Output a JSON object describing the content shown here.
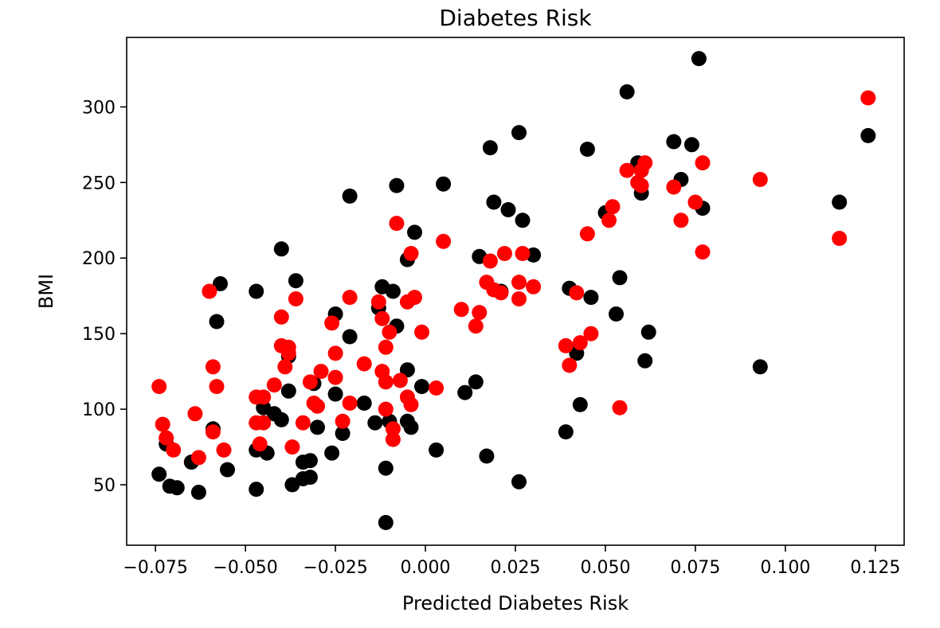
{
  "chart_data": {
    "type": "scatter",
    "title": "Diabetes Risk",
    "xlabel": "Predicted Diabetes Risk",
    "ylabel": "BMI",
    "xlim": [
      -0.083,
      0.133
    ],
    "ylim": [
      10,
      346
    ],
    "xticks": [
      -0.075,
      -0.05,
      -0.025,
      0.0,
      0.025,
      0.05,
      0.075,
      0.1,
      0.125
    ],
    "xtick_labels": [
      "−0.075",
      "−0.050",
      "−0.025",
      "0.000",
      "0.025",
      "0.050",
      "0.075",
      "0.100",
      "0.125"
    ],
    "yticks": [
      50,
      100,
      150,
      200,
      250,
      300
    ],
    "ytick_labels": [
      "50",
      "100",
      "150",
      "200",
      "250",
      "300"
    ],
    "grid": false,
    "series": [
      {
        "color": "#000000",
        "points": [
          [
            -0.074,
            57
          ],
          [
            -0.072,
            77
          ],
          [
            -0.071,
            49
          ],
          [
            -0.069,
            48
          ],
          [
            -0.065,
            65
          ],
          [
            -0.063,
            45
          ],
          [
            -0.059,
            87
          ],
          [
            -0.058,
            158
          ],
          [
            -0.057,
            183
          ],
          [
            -0.055,
            60
          ],
          [
            -0.047,
            178
          ],
          [
            -0.047,
            73
          ],
          [
            -0.047,
            47
          ],
          [
            -0.045,
            101
          ],
          [
            -0.044,
            71
          ],
          [
            -0.042,
            97
          ],
          [
            -0.04,
            206
          ],
          [
            -0.04,
            93
          ],
          [
            -0.038,
            135
          ],
          [
            -0.038,
            112
          ],
          [
            -0.037,
            50
          ],
          [
            -0.036,
            185
          ],
          [
            -0.034,
            65
          ],
          [
            -0.034,
            54
          ],
          [
            -0.032,
            66
          ],
          [
            -0.032,
            55
          ],
          [
            -0.031,
            117
          ],
          [
            -0.03,
            88
          ],
          [
            -0.026,
            71
          ],
          [
            -0.025,
            110
          ],
          [
            -0.025,
            163
          ],
          [
            -0.023,
            84
          ],
          [
            -0.021,
            148
          ],
          [
            -0.021,
            241
          ],
          [
            -0.017,
            104
          ],
          [
            -0.014,
            91
          ],
          [
            -0.013,
            167
          ],
          [
            -0.012,
            181
          ],
          [
            -0.011,
            25
          ],
          [
            -0.011,
            61
          ],
          [
            -0.01,
            92
          ],
          [
            -0.009,
            178
          ],
          [
            -0.008,
            248
          ],
          [
            -0.008,
            155
          ],
          [
            -0.005,
            126
          ],
          [
            -0.005,
            92
          ],
          [
            -0.005,
            199
          ],
          [
            -0.004,
            88
          ],
          [
            -0.003,
            217
          ],
          [
            -0.001,
            115
          ],
          [
            0.003,
            73
          ],
          [
            0.005,
            249
          ],
          [
            0.011,
            111
          ],
          [
            0.014,
            118
          ],
          [
            0.015,
            201
          ],
          [
            0.017,
            69
          ],
          [
            0.018,
            273
          ],
          [
            0.019,
            237
          ],
          [
            0.021,
            178
          ],
          [
            0.023,
            232
          ],
          [
            0.026,
            283
          ],
          [
            0.026,
            52
          ],
          [
            0.027,
            225
          ],
          [
            0.03,
            202
          ],
          [
            0.039,
            85
          ],
          [
            0.04,
            180
          ],
          [
            0.042,
            137
          ],
          [
            0.043,
            103
          ],
          [
            0.045,
            272
          ],
          [
            0.046,
            174
          ],
          [
            0.05,
            230
          ],
          [
            0.053,
            163
          ],
          [
            0.054,
            187
          ],
          [
            0.056,
            310
          ],
          [
            0.059,
            263
          ],
          [
            0.06,
            243
          ],
          [
            0.061,
            132
          ],
          [
            0.062,
            151
          ],
          [
            0.069,
            277
          ],
          [
            0.071,
            252
          ],
          [
            0.074,
            275
          ],
          [
            0.076,
            332
          ],
          [
            0.077,
            233
          ],
          [
            0.093,
            128
          ],
          [
            0.115,
            237
          ],
          [
            0.123,
            281
          ]
        ]
      },
      {
        "color": "#ff0000",
        "points": [
          [
            -0.074,
            115
          ],
          [
            -0.073,
            90
          ],
          [
            -0.072,
            81
          ],
          [
            -0.07,
            73
          ],
          [
            -0.064,
            97
          ],
          [
            -0.063,
            68
          ],
          [
            -0.06,
            178
          ],
          [
            -0.059,
            85
          ],
          [
            -0.059,
            128
          ],
          [
            -0.058,
            115
          ],
          [
            -0.056,
            73
          ],
          [
            -0.047,
            108
          ],
          [
            -0.047,
            91
          ],
          [
            -0.046,
            77
          ],
          [
            -0.045,
            91
          ],
          [
            -0.045,
            108
          ],
          [
            -0.042,
            116
          ],
          [
            -0.04,
            161
          ],
          [
            -0.04,
            142
          ],
          [
            -0.039,
            128
          ],
          [
            -0.038,
            141
          ],
          [
            -0.038,
            137
          ],
          [
            -0.037,
            75
          ],
          [
            -0.036,
            173
          ],
          [
            -0.034,
            91
          ],
          [
            -0.032,
            118
          ],
          [
            -0.031,
            104
          ],
          [
            -0.03,
            102
          ],
          [
            -0.029,
            125
          ],
          [
            -0.026,
            157
          ],
          [
            -0.025,
            121
          ],
          [
            -0.025,
            137
          ],
          [
            -0.023,
            92
          ],
          [
            -0.021,
            174
          ],
          [
            -0.021,
            104
          ],
          [
            -0.017,
            130
          ],
          [
            -0.013,
            171
          ],
          [
            -0.012,
            160
          ],
          [
            -0.012,
            125
          ],
          [
            -0.011,
            100
          ],
          [
            -0.011,
            141
          ],
          [
            -0.011,
            118
          ],
          [
            -0.01,
            151
          ],
          [
            -0.009,
            87
          ],
          [
            -0.009,
            80
          ],
          [
            -0.008,
            223
          ],
          [
            -0.007,
            119
          ],
          [
            -0.005,
            108
          ],
          [
            -0.005,
            171
          ],
          [
            -0.004,
            203
          ],
          [
            -0.004,
            103
          ],
          [
            -0.003,
            174
          ],
          [
            -0.001,
            151
          ],
          [
            0.003,
            114
          ],
          [
            0.005,
            211
          ],
          [
            0.01,
            166
          ],
          [
            0.014,
            155
          ],
          [
            0.015,
            164
          ],
          [
            0.017,
            184
          ],
          [
            0.018,
            198
          ],
          [
            0.019,
            179
          ],
          [
            0.021,
            177
          ],
          [
            0.022,
            203
          ],
          [
            0.026,
            184
          ],
          [
            0.026,
            173
          ],
          [
            0.027,
            203
          ],
          [
            0.03,
            181
          ],
          [
            0.039,
            142
          ],
          [
            0.04,
            129
          ],
          [
            0.042,
            177
          ],
          [
            0.043,
            144
          ],
          [
            0.045,
            216
          ],
          [
            0.046,
            150
          ],
          [
            0.051,
            225
          ],
          [
            0.052,
            234
          ],
          [
            0.054,
            101
          ],
          [
            0.056,
            258
          ],
          [
            0.059,
            250
          ],
          [
            0.06,
            258
          ],
          [
            0.06,
            248
          ],
          [
            0.061,
            263
          ],
          [
            0.069,
            247
          ],
          [
            0.071,
            225
          ],
          [
            0.075,
            237
          ],
          [
            0.077,
            263
          ],
          [
            0.077,
            204
          ],
          [
            0.093,
            252
          ],
          [
            0.115,
            213
          ],
          [
            0.123,
            306
          ]
        ]
      }
    ]
  }
}
